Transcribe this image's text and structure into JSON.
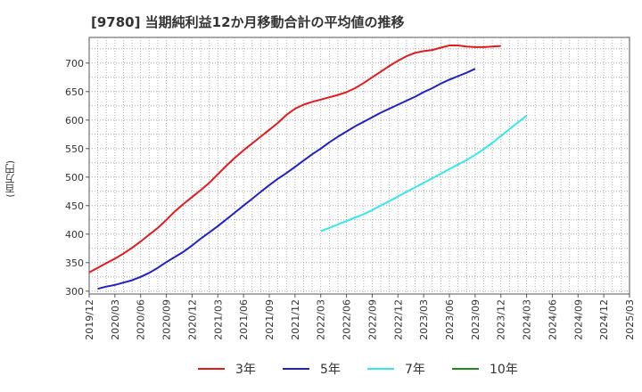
{
  "title": "[9780]  当期純利益12か月移動合計の平均値の推移",
  "chart_data": {
    "type": "line",
    "ylabel": "(百万円)",
    "xlabel": "",
    "ylim": [
      295,
      745
    ],
    "yticks": [
      300,
      350,
      400,
      450,
      500,
      550,
      600,
      650,
      700
    ],
    "xticks": [
      "2019/12",
      "2020/03",
      "2020/06",
      "2020/09",
      "2020/12",
      "2021/03",
      "2021/06",
      "2021/09",
      "2021/12",
      "2022/03",
      "2022/06",
      "2022/09",
      "2022/12",
      "2023/03",
      "2023/06",
      "2023/09",
      "2023/12",
      "2024/03",
      "2024/06",
      "2024/09",
      "2024/12",
      "2025/03"
    ],
    "grid": true,
    "legend_position": "bottom",
    "series": [
      {
        "name": "3年",
        "color": "#e31a1c",
        "start_index": 0,
        "values": [
          333,
          341,
          349,
          357,
          366,
          376,
          387,
          399,
          411,
          425,
          440,
          453,
          465,
          477,
          490,
          505,
          520,
          534,
          547,
          559,
          571,
          583,
          595,
          609,
          620,
          627,
          632,
          636,
          640,
          644,
          649,
          656,
          665,
          675,
          685,
          695,
          704,
          712,
          718,
          721,
          723,
          727,
          731,
          731,
          729,
          728,
          728,
          729,
          730
        ]
      },
      {
        "name": "5年",
        "color": "#1f1fcc",
        "start_index": 1,
        "values": [
          304,
          308,
          311,
          315,
          319,
          325,
          332,
          341,
          351,
          360,
          369,
          380,
          392,
          403,
          414,
          426,
          438,
          450,
          462,
          474,
          486,
          497,
          507,
          518,
          529,
          540,
          550,
          561,
          571,
          580,
          589,
          597,
          605,
          613,
          620,
          627,
          634,
          641,
          649,
          656,
          664,
          671,
          677,
          683,
          690
        ]
      },
      {
        "name": "7年",
        "color": "#33e6f0",
        "start_index": 27,
        "values": [
          405,
          411,
          417,
          423,
          429,
          435,
          442,
          450,
          458,
          466,
          474,
          482,
          490,
          498,
          506,
          514,
          522,
          530,
          539,
          549,
          560,
          572,
          584,
          596,
          608
        ]
      },
      {
        "name": "10年",
        "color": "#1a8c1a",
        "start_index": 0,
        "values": []
      }
    ]
  }
}
